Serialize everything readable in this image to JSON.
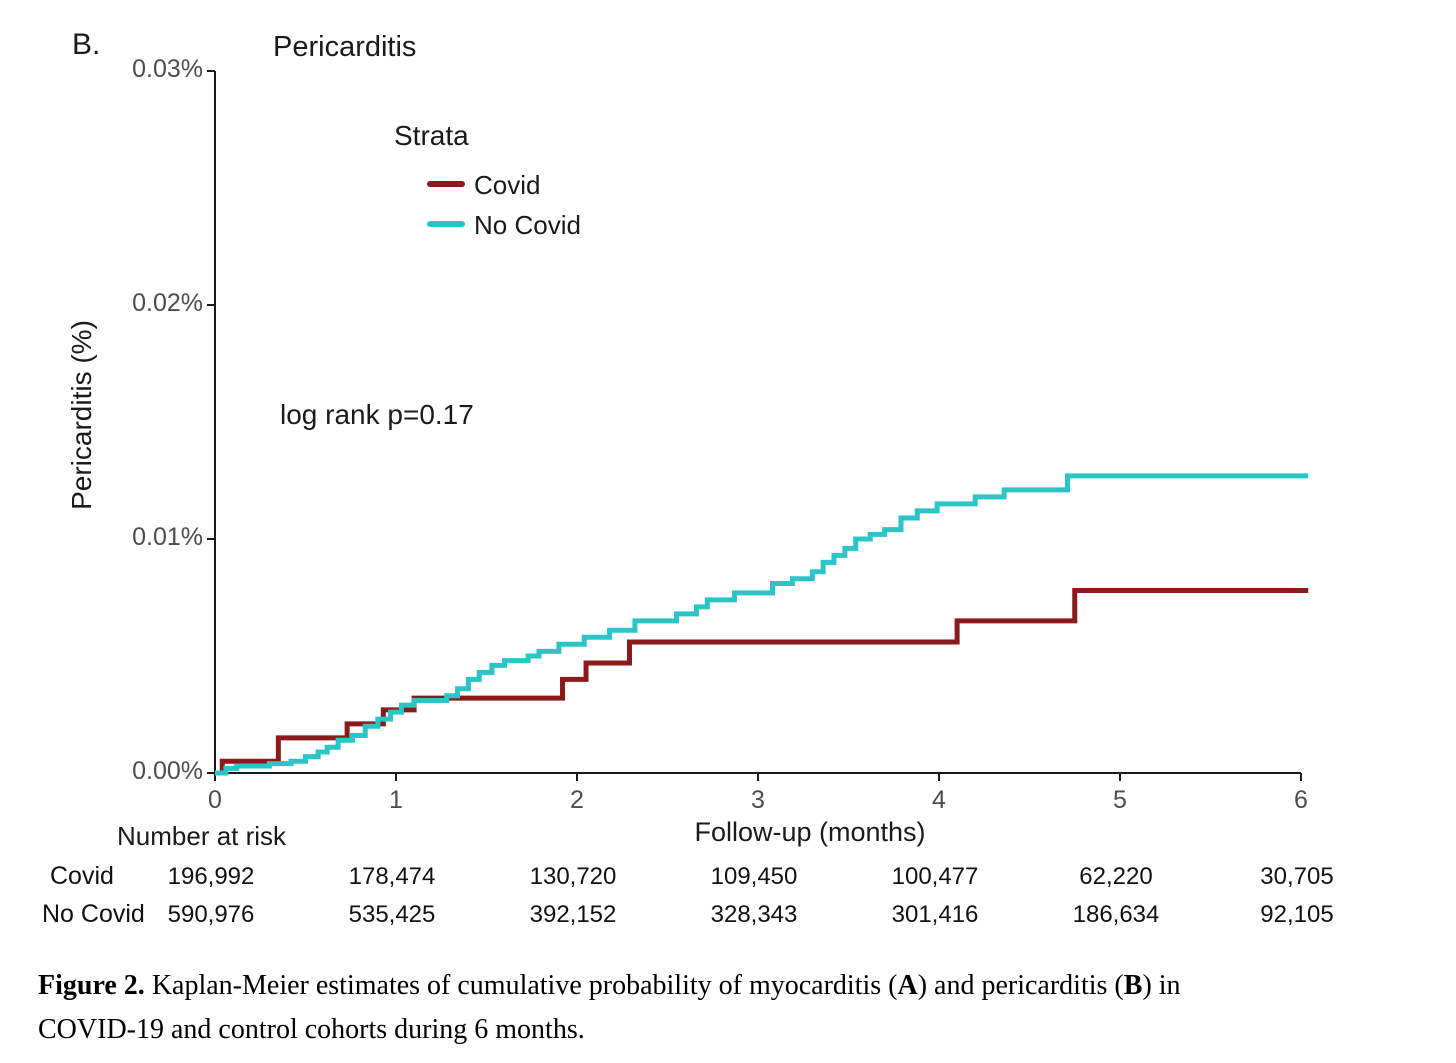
{
  "panel_label": "B.",
  "chart_data": {
    "type": "line",
    "subtype": "kaplan-meier-step",
    "title": "Pericarditis",
    "xlabel": "Follow-up (months)",
    "ylabel": "Pericarditis (%)",
    "legend_title": "Strata",
    "annotation": "log rank p=0.17",
    "xlim": [
      0,
      6
    ],
    "ylim_percent": [
      0,
      0.03
    ],
    "x_tick_values": [
      0,
      1,
      2,
      3,
      4,
      5,
      6
    ],
    "x_tick_labels": [
      "0",
      "1",
      "2",
      "3",
      "4",
      "5",
      "6"
    ],
    "y_tick_values": [
      0,
      0.01,
      0.02,
      0.03
    ],
    "y_tick_labels": [
      "0.00%",
      "0.01%",
      "0.02%",
      "0.03%"
    ],
    "x_end": 6.04,
    "legend_position": "top-left-inside",
    "grid": false,
    "series": [
      {
        "name": "Covid",
        "color": "#8B1A1A",
        "points": [
          [
            0.0,
            0.0
          ],
          [
            0.04,
            0.0005
          ],
          [
            0.35,
            0.0015
          ],
          [
            0.73,
            0.0021
          ],
          [
            0.93,
            0.0027
          ],
          [
            1.1,
            0.0032
          ],
          [
            1.92,
            0.004
          ],
          [
            2.05,
            0.0047
          ],
          [
            2.29,
            0.0056
          ],
          [
            4.1,
            0.0065
          ],
          [
            4.75,
            0.0078
          ]
        ]
      },
      {
        "name": "No Covid",
        "color": "#2BC5C8",
        "points": [
          [
            0.0,
            0.0
          ],
          [
            0.06,
            0.0002
          ],
          [
            0.12,
            0.0003
          ],
          [
            0.3,
            0.0004
          ],
          [
            0.42,
            0.0005
          ],
          [
            0.5,
            0.0007
          ],
          [
            0.57,
            0.0009
          ],
          [
            0.62,
            0.0011
          ],
          [
            0.68,
            0.0014
          ],
          [
            0.76,
            0.0016
          ],
          [
            0.83,
            0.002
          ],
          [
            0.9,
            0.0023
          ],
          [
            0.97,
            0.0026
          ],
          [
            1.03,
            0.0029
          ],
          [
            1.1,
            0.0031
          ],
          [
            1.28,
            0.0033
          ],
          [
            1.34,
            0.0036
          ],
          [
            1.4,
            0.004
          ],
          [
            1.46,
            0.0043
          ],
          [
            1.53,
            0.0046
          ],
          [
            1.6,
            0.0048
          ],
          [
            1.73,
            0.005
          ],
          [
            1.79,
            0.0052
          ],
          [
            1.9,
            0.0055
          ],
          [
            2.04,
            0.0058
          ],
          [
            2.18,
            0.0061
          ],
          [
            2.32,
            0.0065
          ],
          [
            2.55,
            0.0068
          ],
          [
            2.66,
            0.0071
          ],
          [
            2.72,
            0.0074
          ],
          [
            2.87,
            0.0077
          ],
          [
            3.08,
            0.0081
          ],
          [
            3.19,
            0.0083
          ],
          [
            3.3,
            0.0086
          ],
          [
            3.36,
            0.009
          ],
          [
            3.42,
            0.0093
          ],
          [
            3.48,
            0.0096
          ],
          [
            3.54,
            0.01
          ],
          [
            3.62,
            0.0102
          ],
          [
            3.7,
            0.0104
          ],
          [
            3.79,
            0.0109
          ],
          [
            3.88,
            0.0112
          ],
          [
            3.99,
            0.0115
          ],
          [
            4.2,
            0.0118
          ],
          [
            4.36,
            0.0121
          ],
          [
            4.71,
            0.0127
          ]
        ]
      }
    ]
  },
  "risk_table": {
    "header": "Number at risk",
    "rows": [
      {
        "label": "Covid",
        "values": [
          "196,992",
          "178,474",
          "130,720",
          "109,450",
          "100,477",
          "62,220",
          "30,705"
        ]
      },
      {
        "label": "No Covid",
        "values": [
          "590,976",
          "535,425",
          "392,152",
          "328,343",
          "301,416",
          "186,634",
          "92,105"
        ]
      }
    ]
  },
  "caption": {
    "lines": [
      [
        {
          "text": "Figure 2. ",
          "bold": true
        },
        {
          "text": "Kaplan-Meier estimates of cumulative probability of myocarditis (",
          "bold": false
        },
        {
          "text": "A",
          "bold": true
        },
        {
          "text": ") and pericarditis (",
          "bold": false
        },
        {
          "text": "B",
          "bold": true
        },
        {
          "text": ") in",
          "bold": false
        }
      ],
      [
        {
          "text": "COVID-19 and control cohorts during 6 months.",
          "bold": false
        }
      ]
    ]
  }
}
